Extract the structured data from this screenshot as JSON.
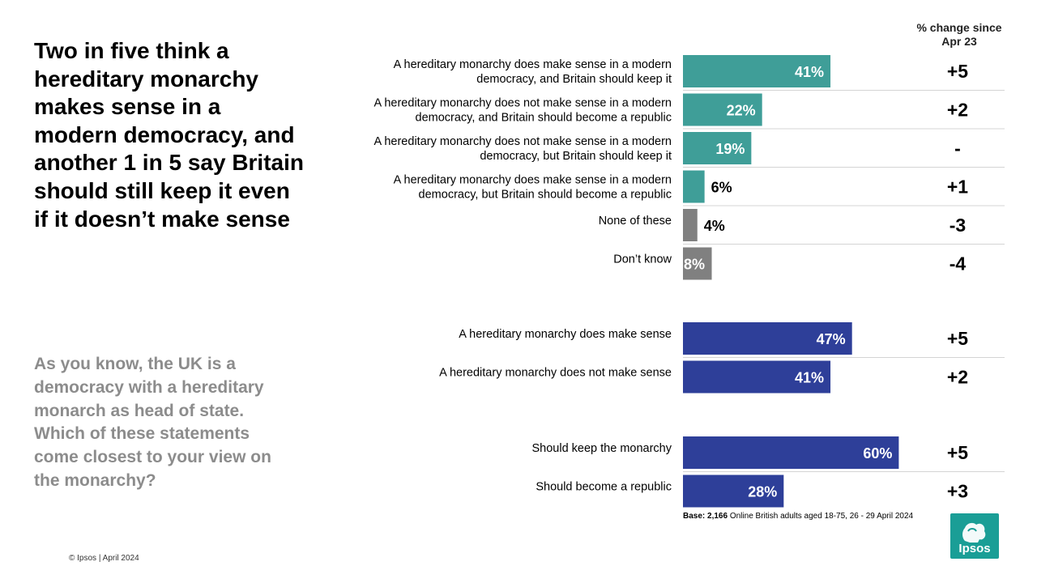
{
  "title": "Two in five think a hereditary monarchy makes sense in a modern democracy, and another 1 in 5 say Britain should still keep it even if it doesn’t make sense",
  "question": "As you know, the UK is a democracy with a hereditary monarch as head of state. Which of these statements come closest to your view on the monarchy?",
  "footer": "© Ipsos | April 2024",
  "change_header": "% change since Apr  23",
  "base_label": "Base:",
  "base_value": "2,166",
  "base_text": "Online British adults aged 18-75, 26 - 29 April 2024",
  "logo_text": "Ipsos",
  "colors": {
    "teal": "#3f9e98",
    "grey": "#808080",
    "navy": "#2e3f99",
    "logo": "#1a9e96"
  },
  "chart_data": {
    "type": "bar",
    "orientation": "horizontal",
    "xlim": [
      0,
      100
    ],
    "unit": "%",
    "groups": [
      {
        "items": [
          {
            "label_lines": [
              "A hereditary monarchy does make sense in a modern",
              "democracy, and Britain should keep it"
            ],
            "value": 41,
            "value_label": "41%",
            "change": "+5",
            "color": "teal"
          },
          {
            "label_lines": [
              "A hereditary monarchy does not make sense in a modern",
              "democracy, and Britain should become a republic"
            ],
            "value": 22,
            "value_label": "22%",
            "change": "+2",
            "color": "teal"
          },
          {
            "label_lines": [
              "A hereditary monarchy does not make sense in a modern",
              "democracy, but Britain should keep it"
            ],
            "value": 19,
            "value_label": "19%",
            "change": "-",
            "color": "teal"
          },
          {
            "label_lines": [
              "A hereditary monarchy does make sense in a modern",
              "democracy, but Britain should become a republic"
            ],
            "value": 6,
            "value_label": "6%",
            "change": "+1",
            "color": "teal"
          },
          {
            "label_lines": [
              "None of these"
            ],
            "value": 4,
            "value_label": "4%",
            "change": "-3",
            "color": "grey"
          },
          {
            "label_lines": [
              "Don’t know"
            ],
            "value": 8,
            "value_label": "8%",
            "change": "-4",
            "color": "grey"
          }
        ]
      },
      {
        "items": [
          {
            "label_lines": [
              "A hereditary monarchy does make sense"
            ],
            "value": 47,
            "value_label": "47%",
            "change": "+5",
            "color": "navy"
          },
          {
            "label_lines": [
              "A hereditary monarchy does not make sense"
            ],
            "value": 41,
            "value_label": "41%",
            "change": "+2",
            "color": "navy"
          }
        ]
      },
      {
        "items": [
          {
            "label_lines": [
              "Should keep the monarchy"
            ],
            "value": 60,
            "value_label": "60%",
            "change": "+5",
            "color": "navy"
          },
          {
            "label_lines": [
              "Should become a republic"
            ],
            "value": 28,
            "value_label": "28%",
            "change": "+3",
            "color": "navy"
          }
        ]
      }
    ]
  }
}
